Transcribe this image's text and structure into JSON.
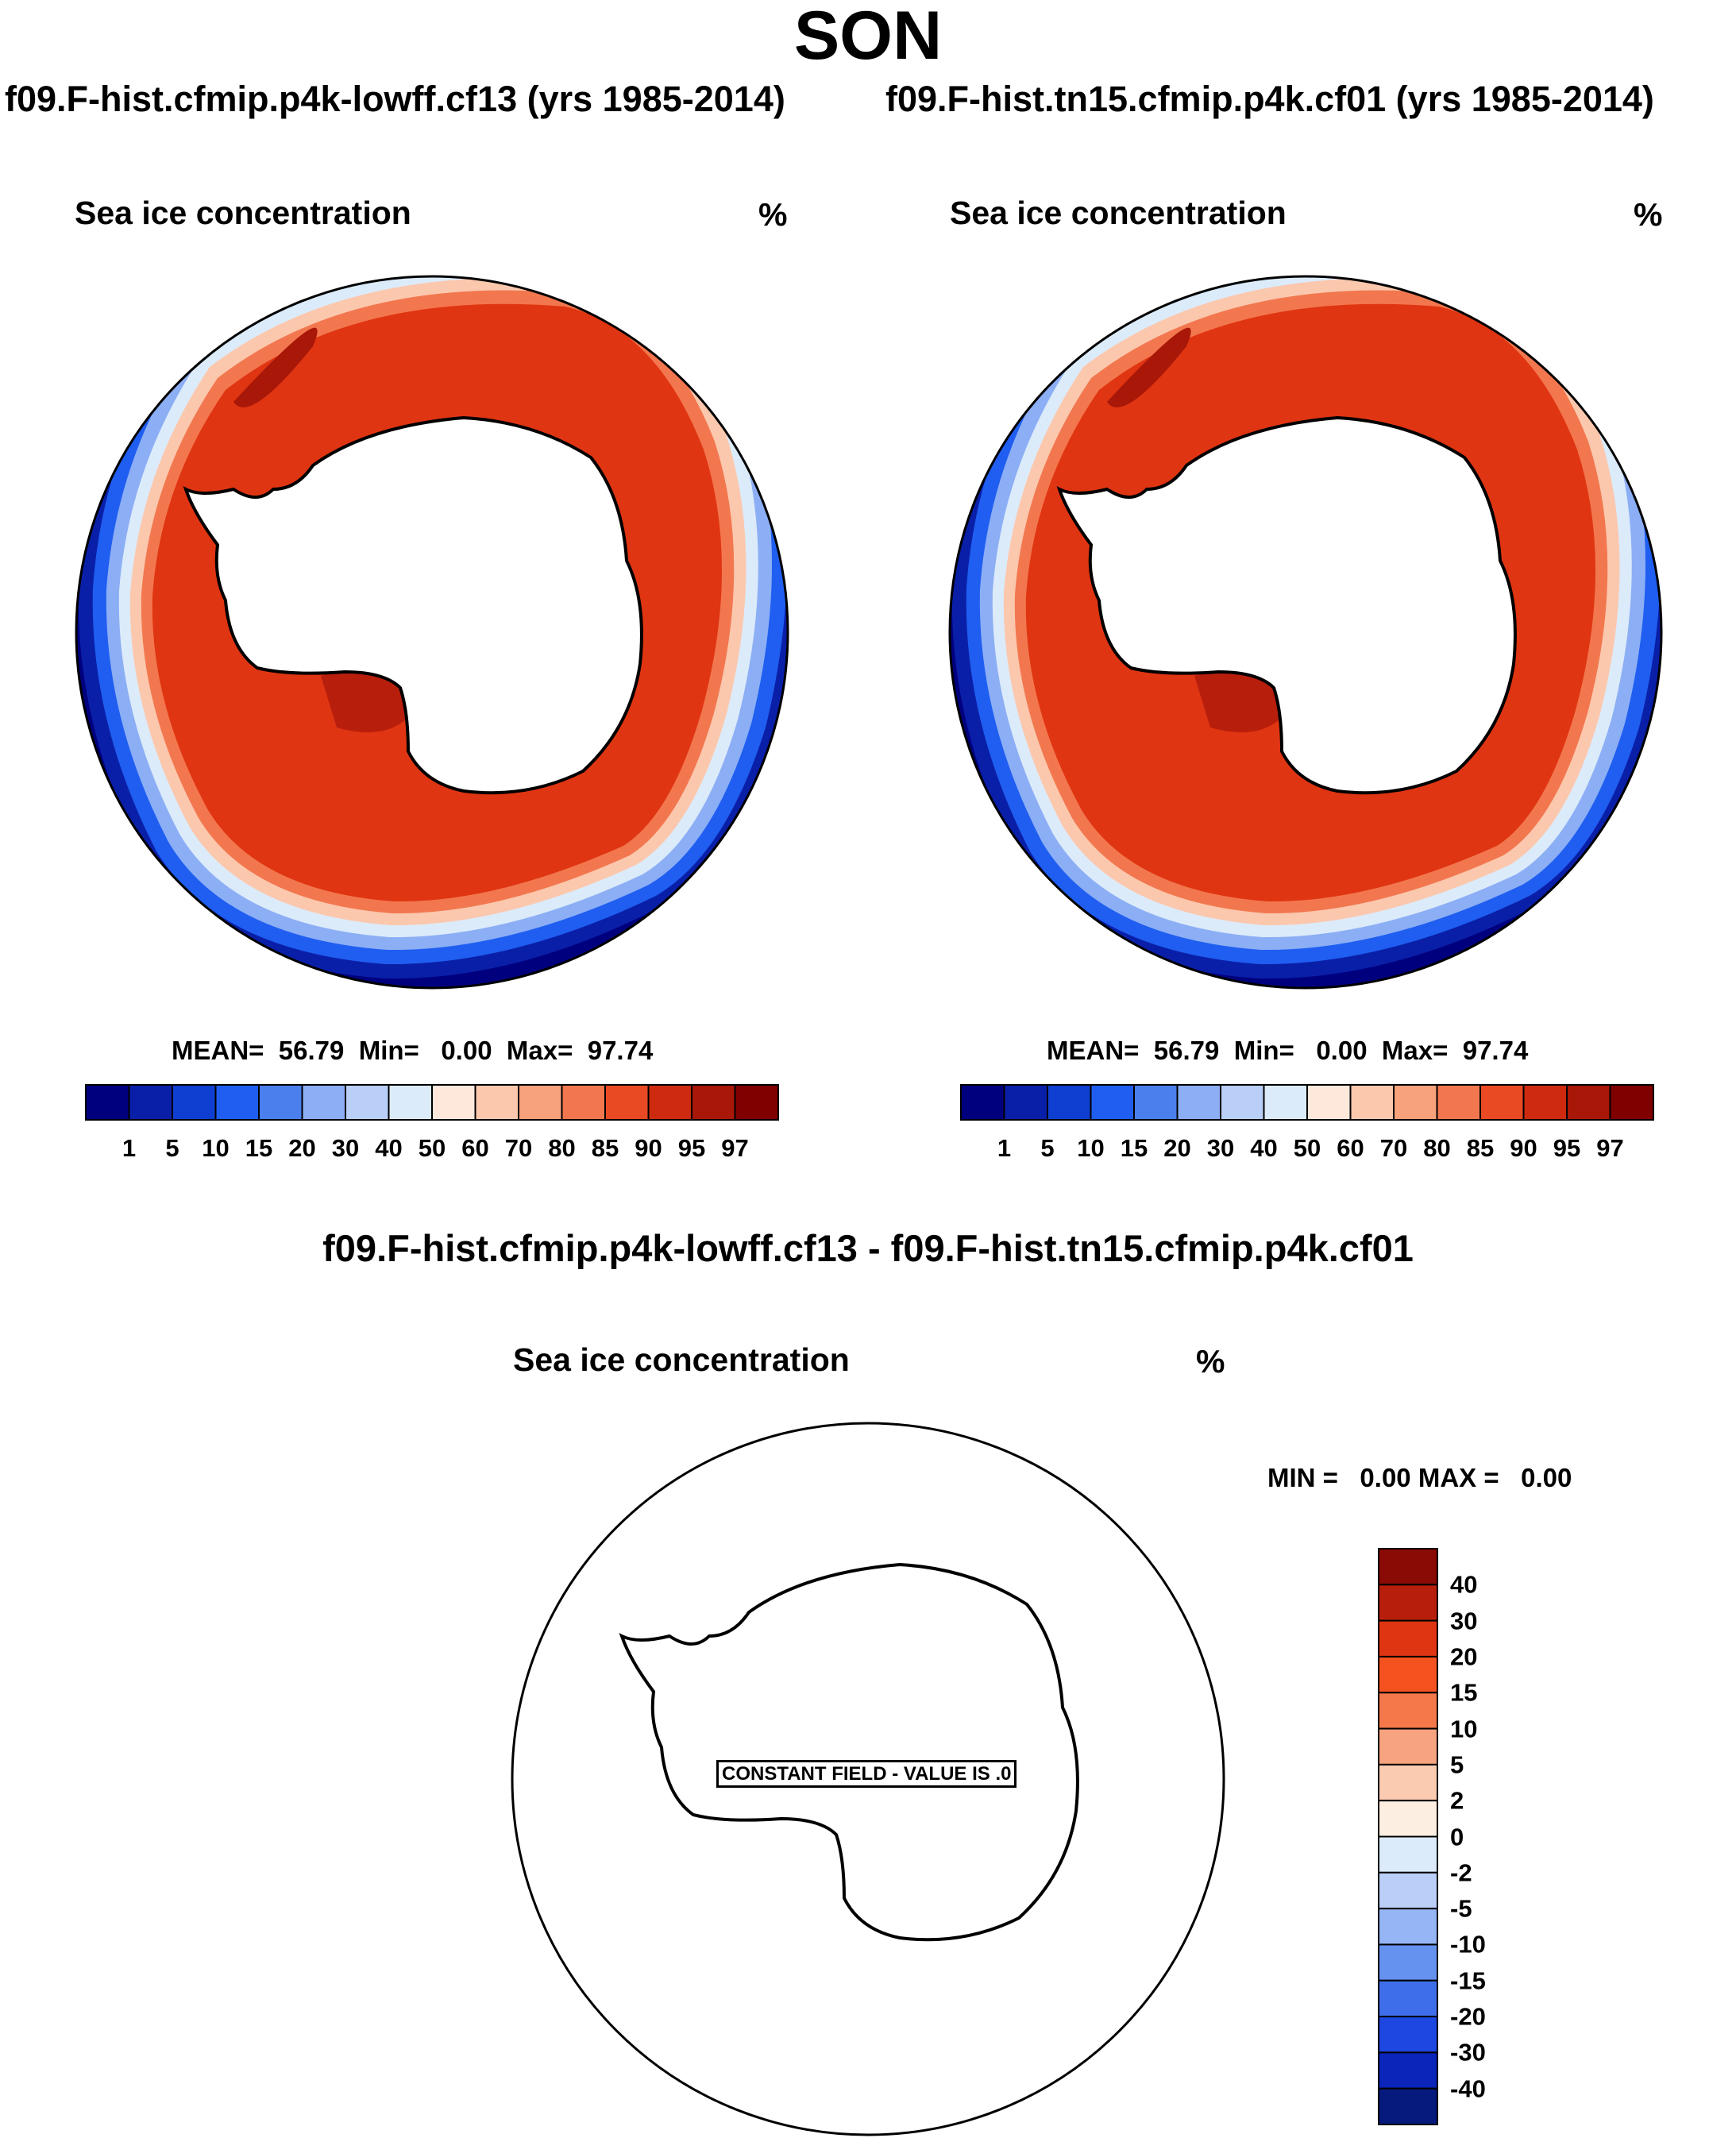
{
  "title": "SON",
  "left_panel": {
    "case": "f09.F-hist.cfmip.p4k-lowff.cf13 (yrs 1985-2014)",
    "variable": "Sea ice concentration",
    "units": "%",
    "stats": {
      "mean_label": "MEAN=",
      "mean": "56.79",
      "min_label": "Min=",
      "min": "0.00",
      "max_label": "Max=",
      "max": "97.74"
    }
  },
  "right_panel": {
    "case": "f09.F-hist.tn15.cfmip.p4k.cf01 (yrs 1985-2014)",
    "variable": "Sea ice concentration",
    "units": "%",
    "stats": {
      "mean_label": "MEAN=",
      "mean": "56.79",
      "min_label": "Min=",
      "min": "0.00",
      "max_label": "Max=",
      "max": "97.74"
    }
  },
  "diff_panel": {
    "title": "f09.F-hist.cfmip.p4k-lowff.cf13 - f09.F-hist.tn15.cfmip.p4k.cf01",
    "variable": "Sea ice concentration",
    "units": "%",
    "minmax": "MIN =   0.00 MAX =   0.00",
    "constant_field": "CONSTANT FIELD - VALUE IS .0"
  },
  "chart_data": [
    {
      "type": "heatmap",
      "projection": "south-polar-stereographic",
      "title": "Sea ice concentration",
      "units": "%",
      "case": "f09.F-hist.cfmip.p4k-lowff.cf13 (yrs 1985-2014)",
      "mean": 56.79,
      "min": 0.0,
      "max": 97.74,
      "colorbar_levels": [
        "1",
        "5",
        "10",
        "15",
        "20",
        "30",
        "40",
        "50",
        "60",
        "70",
        "80",
        "85",
        "90",
        "95",
        "97"
      ],
      "colorbar_colors": [
        "#00007f",
        "#0a1fa8",
        "#0f3fd1",
        "#1f5ef0",
        "#4a7fed",
        "#8caef5",
        "#b9cff8",
        "#dcebfa",
        "#fde8db",
        "#fbc8ae",
        "#f7a27c",
        "#f2774f",
        "#ea4a23",
        "#cd2a10",
        "#a81708",
        "#800000"
      ]
    },
    {
      "type": "heatmap",
      "projection": "south-polar-stereographic",
      "title": "Sea ice concentration",
      "units": "%",
      "case": "f09.F-hist.tn15.cfmip.p4k.cf01 (yrs 1985-2014)",
      "mean": 56.79,
      "min": 0.0,
      "max": 97.74,
      "colorbar_levels": [
        "1",
        "5",
        "10",
        "15",
        "20",
        "30",
        "40",
        "50",
        "60",
        "70",
        "80",
        "85",
        "90",
        "95",
        "97"
      ],
      "colorbar_colors": [
        "#00007f",
        "#0a1fa8",
        "#0f3fd1",
        "#1f5ef0",
        "#4a7fed",
        "#8caef5",
        "#b9cff8",
        "#dcebfa",
        "#fde8db",
        "#fbc8ae",
        "#f7a27c",
        "#f2774f",
        "#ea4a23",
        "#cd2a10",
        "#a81708",
        "#800000"
      ]
    },
    {
      "type": "heatmap",
      "projection": "south-polar-stereographic",
      "title": "Sea ice concentration",
      "units": "%",
      "case": "f09.F-hist.cfmip.p4k-lowff.cf13 - f09.F-hist.tn15.cfmip.p4k.cf01",
      "min": 0.0,
      "max": 0.0,
      "constant_value": 0.0,
      "colorbar_levels": [
        "40",
        "30",
        "20",
        "15",
        "10",
        "5",
        "2",
        "0",
        "-2",
        "-5",
        "-10",
        "-15",
        "-20",
        "-30",
        "-40"
      ],
      "colorbar_colors": [
        "#8a0a05",
        "#b81e0c",
        "#e03512",
        "#f4521f",
        "#f5784b",
        "#f8a37f",
        "#fbcbb1",
        "#fdeee2",
        "#dcebfa",
        "#b9cff8",
        "#95b5f5",
        "#6592ef",
        "#3f6eeb",
        "#1d47e0",
        "#0b24ba",
        "#061a7d"
      ]
    }
  ]
}
